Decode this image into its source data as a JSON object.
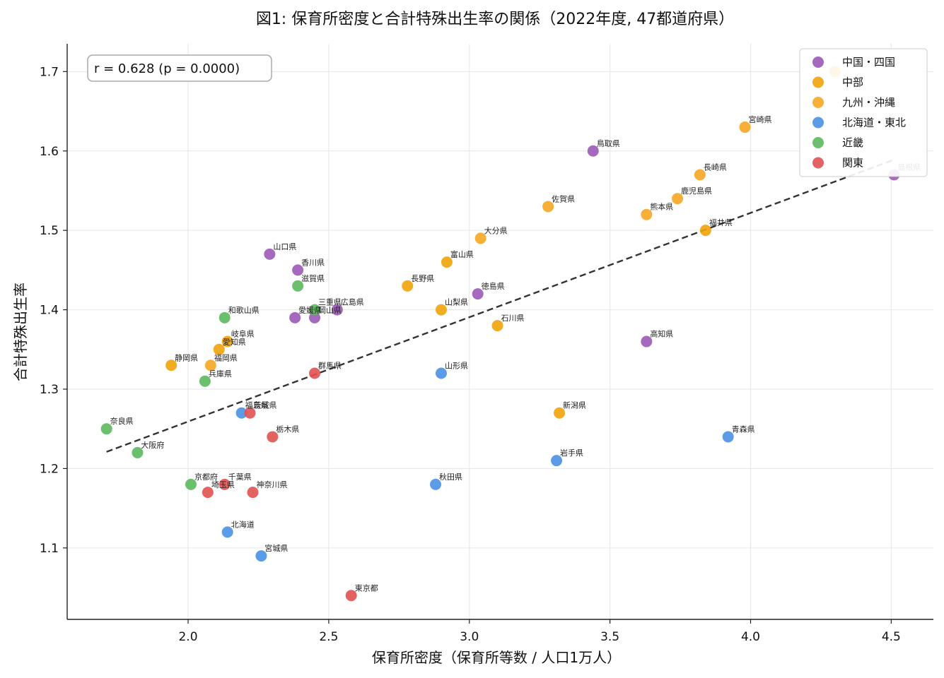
{
  "chart_data": {
    "type": "scatter",
    "title": "図1: 保育所密度と合計特殊出生率の関係（2022年度, 47都道府県）",
    "xlabel": "保育所密度（保育所等数 / 人口1万人）",
    "ylabel": "合計特殊出生率",
    "xlim": [
      1.57,
      4.65
    ],
    "ylim": [
      1.01,
      1.735
    ],
    "xticks": [
      "2.0",
      "2.5",
      "3.0",
      "3.5",
      "4.0",
      "4.5"
    ],
    "yticks": [
      "1.1",
      "1.2",
      "1.3",
      "1.4",
      "1.5",
      "1.6",
      "1.7"
    ],
    "grid": true,
    "legend_position": "top-right",
    "annotation": "r = 0.628  (p = 0.0000)",
    "trendline": {
      "x": [
        1.71,
        4.51
      ],
      "y": [
        1.221,
        1.589
      ]
    },
    "series": [
      {
        "name": "中国・四国",
        "color": "#9b59b6",
        "points": [
          {
            "label": "鳥取県",
            "x": 3.44,
            "y": 1.6
          },
          {
            "label": "島根県",
            "x": 4.51,
            "y": 1.57
          },
          {
            "label": "山口県",
            "x": 2.29,
            "y": 1.47
          },
          {
            "label": "香川県",
            "x": 2.39,
            "y": 1.45
          },
          {
            "label": "徳島県",
            "x": 3.03,
            "y": 1.42
          },
          {
            "label": "広島県",
            "x": 2.53,
            "y": 1.4
          },
          {
            "label": "愛媛県",
            "x": 2.38,
            "y": 1.39
          },
          {
            "label": "岡山県",
            "x": 2.45,
            "y": 1.39
          },
          {
            "label": "高知県",
            "x": 3.63,
            "y": 1.36
          }
        ]
      },
      {
        "name": "中部",
        "color": "#f0a30a",
        "points": [
          {
            "label": "",
            "x": 4.3,
            "y": 1.7
          },
          {
            "label": "福井県",
            "x": 3.84,
            "y": 1.5
          },
          {
            "label": "富山県",
            "x": 2.92,
            "y": 1.46
          },
          {
            "label": "長野県",
            "x": 2.78,
            "y": 1.43
          },
          {
            "label": "山梨県",
            "x": 2.9,
            "y": 1.4
          },
          {
            "label": "石川県",
            "x": 3.1,
            "y": 1.38
          },
          {
            "label": "岐阜県",
            "x": 2.14,
            "y": 1.36
          },
          {
            "label": "愛知県",
            "x": 2.11,
            "y": 1.35
          },
          {
            "label": "静岡県",
            "x": 1.94,
            "y": 1.33
          },
          {
            "label": "新潟県",
            "x": 3.32,
            "y": 1.27
          }
        ]
      },
      {
        "name": "九州・沖縄",
        "color": "#f5a623",
        "points": [
          {
            "label": "宮崎県",
            "x": 3.98,
            "y": 1.63
          },
          {
            "label": "長崎県",
            "x": 3.82,
            "y": 1.57
          },
          {
            "label": "鹿児島県",
            "x": 3.74,
            "y": 1.54
          },
          {
            "label": "佐賀県",
            "x": 3.28,
            "y": 1.53
          },
          {
            "label": "熊本県",
            "x": 3.63,
            "y": 1.52
          },
          {
            "label": "大分県",
            "x": 3.04,
            "y": 1.49
          },
          {
            "label": "福岡県",
            "x": 2.08,
            "y": 1.33
          }
        ]
      },
      {
        "name": "北海道・東北",
        "color": "#4a90e2",
        "points": [
          {
            "label": "山形県",
            "x": 2.9,
            "y": 1.32
          },
          {
            "label": "福島県",
            "x": 2.19,
            "y": 1.27
          },
          {
            "label": "青森県",
            "x": 3.92,
            "y": 1.24
          },
          {
            "label": "岩手県",
            "x": 3.31,
            "y": 1.21
          },
          {
            "label": "秋田県",
            "x": 2.88,
            "y": 1.18
          },
          {
            "label": "北海道",
            "x": 2.14,
            "y": 1.12
          },
          {
            "label": "宮城県",
            "x": 2.26,
            "y": 1.09
          }
        ]
      },
      {
        "name": "近畿",
        "color": "#5cb85c",
        "points": [
          {
            "label": "滋賀県",
            "x": 2.39,
            "y": 1.43
          },
          {
            "label": "三重県",
            "x": 2.45,
            "y": 1.4
          },
          {
            "label": "和歌山県",
            "x": 2.13,
            "y": 1.39
          },
          {
            "label": "兵庫県",
            "x": 2.06,
            "y": 1.31
          },
          {
            "label": "奈良県",
            "x": 1.71,
            "y": 1.25
          },
          {
            "label": "大阪府",
            "x": 1.82,
            "y": 1.22
          },
          {
            "label": "京都府",
            "x": 2.01,
            "y": 1.18
          }
        ]
      },
      {
        "name": "関東",
        "color": "#e05252",
        "points": [
          {
            "label": "群馬県",
            "x": 2.45,
            "y": 1.32
          },
          {
            "label": "茨城県",
            "x": 2.22,
            "y": 1.27
          },
          {
            "label": "栃木県",
            "x": 2.3,
            "y": 1.24
          },
          {
            "label": "千葉県",
            "x": 2.13,
            "y": 1.18
          },
          {
            "label": "埼玉県",
            "x": 2.07,
            "y": 1.17
          },
          {
            "label": "神奈川県",
            "x": 2.23,
            "y": 1.17
          },
          {
            "label": "東京都",
            "x": 2.58,
            "y": 1.04
          }
        ]
      }
    ]
  }
}
